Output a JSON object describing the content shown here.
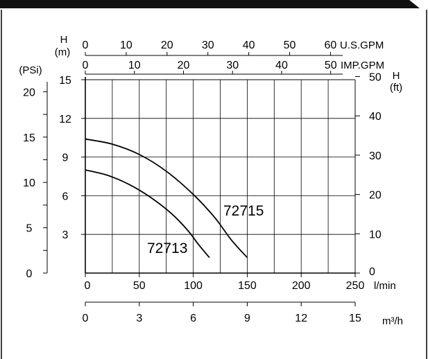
{
  "chart_data": {
    "type": "line",
    "title": "",
    "x_primary": {
      "unit_label": "l/min",
      "range": [
        0,
        250
      ],
      "ticks": [
        0,
        50,
        100,
        150,
        200,
        250
      ],
      "tick_labels": [
        "0",
        "50",
        "100",
        "150",
        "200",
        "250"
      ]
    },
    "x_m3h": {
      "unit_label": "m³/h",
      "range": [
        0,
        15
      ],
      "ticks": [
        0,
        3,
        6,
        9,
        12,
        15
      ],
      "tick_labels": [
        "0",
        "3",
        "6",
        "9",
        "12",
        "15"
      ]
    },
    "x_usgpm": {
      "unit_label": "U.S.GPM",
      "range": [
        0,
        66.04
      ],
      "ticks": [
        0,
        10,
        20,
        30,
        40,
        50,
        60
      ],
      "tick_labels": [
        "0",
        "10",
        "20",
        "30",
        "40",
        "50",
        "60"
      ]
    },
    "x_impgpm": {
      "unit_label": "IMP.GPM",
      "range": [
        0,
        54.99
      ],
      "ticks": [
        0,
        10,
        20,
        30,
        40,
        50
      ],
      "tick_labels": [
        "0",
        "10",
        "20",
        "30",
        "40",
        "50"
      ]
    },
    "y_primary": {
      "unit_label": "H\n(m)",
      "range": [
        0,
        15
      ],
      "ticks": [
        3,
        6,
        9,
        12,
        15
      ],
      "tick_labels": [
        "3",
        "6",
        "9",
        "12",
        "15"
      ]
    },
    "y_psi": {
      "unit_label": "(PSi)",
      "range": [
        0,
        21.33
      ],
      "ticks": [
        0,
        5,
        10,
        15,
        20
      ],
      "tick_labels": [
        "0",
        "5",
        "10",
        "15",
        "20"
      ]
    },
    "y_ft": {
      "unit_label": "H\n(ft)",
      "range": [
        0,
        49.2
      ],
      "ticks": [
        0,
        10,
        20,
        30,
        40,
        50
      ],
      "tick_labels": [
        "0",
        "10",
        "20",
        "30",
        "40",
        "50"
      ]
    },
    "grid": true,
    "legend": "none",
    "series": [
      {
        "name": "72713",
        "points": [
          [
            0,
            8
          ],
          [
            20,
            7.6
          ],
          [
            40,
            6.9
          ],
          [
            60,
            5.9
          ],
          [
            80,
            4.6
          ],
          [
            95,
            3.3
          ],
          [
            105,
            2.2
          ],
          [
            115,
            1.2
          ]
        ]
      },
      {
        "name": "72715",
        "points": [
          [
            0,
            10.4
          ],
          [
            25,
            10
          ],
          [
            50,
            9.2
          ],
          [
            75,
            7.9
          ],
          [
            100,
            6.1
          ],
          [
            120,
            4.3
          ],
          [
            135,
            2.6
          ],
          [
            150,
            1.2
          ]
        ]
      }
    ],
    "colors": {
      "line": "#000000",
      "grid": "#000000",
      "background": "#ffffff",
      "banner": "#111111"
    }
  }
}
